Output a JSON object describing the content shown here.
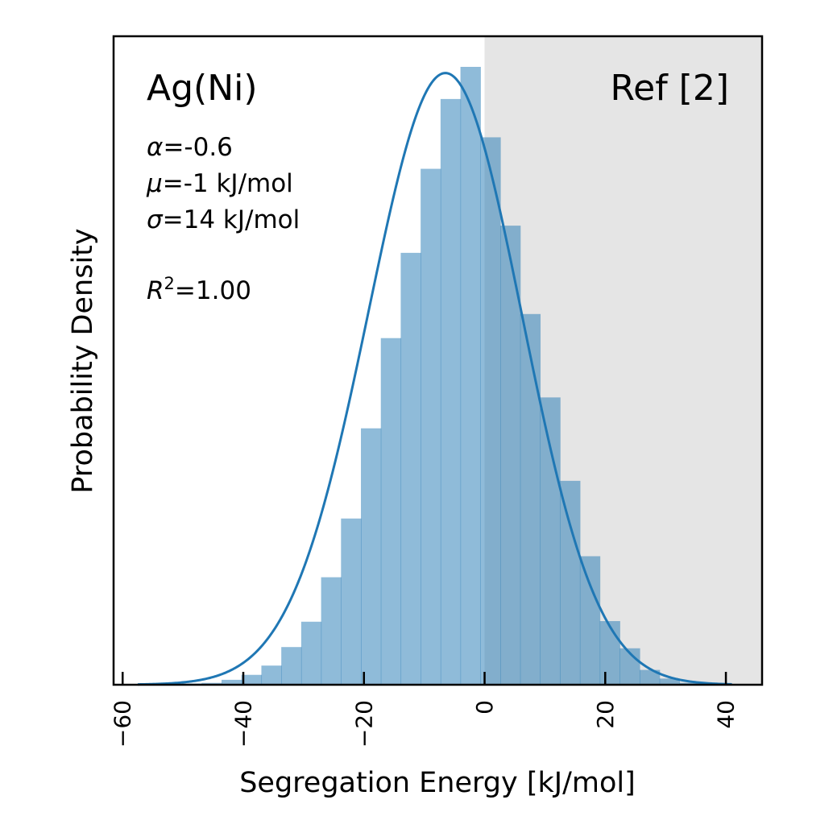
{
  "chart_data": {
    "type": "bar",
    "title": "",
    "xlabel": "Segregation Energy [kJ/mol]",
    "ylabel": "Probability Density",
    "xlim": [
      -61.5,
      46
    ],
    "ylim": [
      0,
      1.0
    ],
    "xticks": [
      -60,
      -40,
      -20,
      0,
      20,
      40
    ],
    "xtick_labels": [
      "−60",
      "−40",
      "−20",
      "0",
      "20",
      "40"
    ],
    "grid": false,
    "shaded_region": {
      "x_start": 0,
      "x_end": 46,
      "label": "Ref [2]",
      "color": "#e5e5e5"
    },
    "annotations": {
      "system": "Ag(Ni)",
      "alpha_label": "α",
      "alpha_value": "=-0.6",
      "mu_label": "μ",
      "mu_value": "=-1 kJ/mol",
      "sigma_label": "σ",
      "sigma_value": "=14 kJ/mol",
      "r2_label": "R",
      "r2_sup": "2",
      "r2_value": "=1.00"
    },
    "histogram": {
      "bin_width": 3.3,
      "bin_start": -53.5,
      "densities": [
        0.001,
        0.002,
        0.003,
        0.008,
        0.016,
        0.031,
        0.061,
        0.102,
        0.174,
        0.269,
        0.415,
        0.561,
        0.699,
        0.835,
        0.948,
        1.0,
        0.886,
        0.743,
        0.6,
        0.465,
        0.33,
        0.208,
        0.103,
        0.059,
        0.024,
        0.01,
        0.003
      ],
      "color": "#1f77b4",
      "opacity": 0.5
    },
    "fit_curve": {
      "type": "skew-normal",
      "alpha": -0.6,
      "mu": -1,
      "sigma": 14,
      "x_range": [
        -57.5,
        41
      ],
      "color": "#1f77b4"
    }
  }
}
